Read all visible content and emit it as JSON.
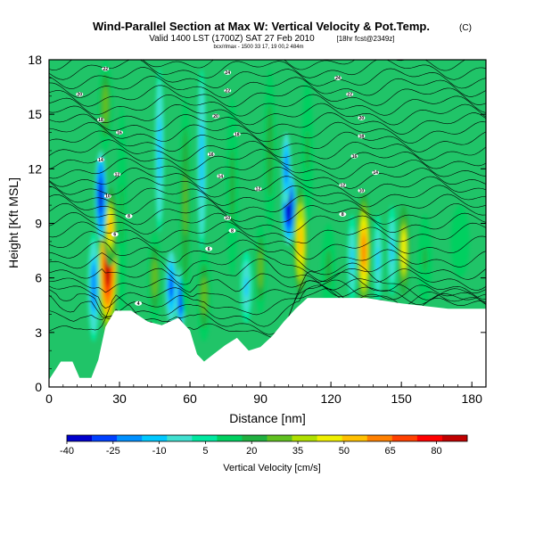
{
  "figure": {
    "title": "Wind-Parallel Section at Max W: Vertical Velocity & Pot.Temp.",
    "title_mark": "(C)",
    "subtitle": "Valid 1400 LST (1700Z) SAT 27 Feb 2010",
    "subtitle_note": "[18hr fcst@2349z]",
    "caption": "bcx/rlmax - 1500 33 17, 19 00,2 484m"
  },
  "chart_data": {
    "type": "heatmap",
    "title": "Wind-Parallel Section at Max W: Vertical Velocity & Pot.Temp.",
    "xlabel": "Distance [nm]",
    "ylabel": "Height [Kft MSL]",
    "xlim": [
      0,
      186
    ],
    "ylim": [
      0,
      18
    ],
    "xticks": [
      0,
      30,
      60,
      90,
      120,
      150,
      180
    ],
    "yticks": [
      0,
      3,
      6,
      9,
      12,
      15,
      18
    ],
    "colorbar": {
      "label": "Vertical Velocity [cm/s]",
      "tick_values": [
        -40,
        -25,
        -10,
        5,
        20,
        35,
        50,
        65,
        80
      ],
      "tick_labels": [
        "-40",
        "-25",
        "-10",
        "5",
        "20",
        "35",
        "50",
        "65",
        "80"
      ],
      "range": [
        -40,
        90
      ],
      "colors": [
        "#0000cc",
        "#0040ff",
        "#0090ff",
        "#00c8ff",
        "#40e0d0",
        "#00e8a0",
        "#00d060",
        "#20b040",
        "#60c020",
        "#b0e000",
        "#f0f000",
        "#ffc000",
        "#ff8000",
        "#ff4000",
        "#ff0000",
        "#c00000"
      ]
    },
    "terrain": [
      [
        0,
        0.4
      ],
      [
        5,
        1.4
      ],
      [
        10,
        1.4
      ],
      [
        13,
        0.5
      ],
      [
        18,
        0.5
      ],
      [
        21,
        1.5
      ],
      [
        24,
        3.3
      ],
      [
        28,
        4.2
      ],
      [
        35,
        4.2
      ],
      [
        42,
        3.6
      ],
      [
        48,
        3.4
      ],
      [
        55,
        3.8
      ],
      [
        60,
        3.1
      ],
      [
        63,
        1.8
      ],
      [
        66,
        1.4
      ],
      [
        70,
        1.8
      ],
      [
        75,
        2.3
      ],
      [
        80,
        2.7
      ],
      [
        85,
        2.0
      ],
      [
        90,
        2.2
      ],
      [
        95,
        2.8
      ],
      [
        100,
        3.6
      ],
      [
        105,
        4.3
      ],
      [
        110,
        4.9
      ],
      [
        135,
        4.9
      ],
      [
        150,
        4.6
      ],
      [
        170,
        4.3
      ],
      [
        186,
        4.3
      ]
    ],
    "vertical_velocity_features": [
      {
        "x": 25,
        "y": 6.5,
        "x_halfwidth": 4,
        "y_halfheight": 3.5,
        "w": 85
      },
      {
        "x": 26,
        "y": 8.8,
        "x_halfwidth": 3,
        "y_halfheight": 2.2,
        "w": 50
      },
      {
        "x": 24,
        "y": 15.5,
        "x_halfwidth": 3,
        "y_halfheight": 2.5,
        "w": 30
      },
      {
        "x": 22,
        "y": 10.5,
        "x_halfwidth": 2.5,
        "y_halfheight": 2.5,
        "w": -35
      },
      {
        "x": 19,
        "y": 5.5,
        "x_halfwidth": 2.5,
        "y_halfheight": 3.0,
        "w": -20
      },
      {
        "x": 31,
        "y": 9.5,
        "x_halfwidth": 2,
        "y_halfheight": 6,
        "w": 18
      },
      {
        "x": 45,
        "y": 6.0,
        "x_halfwidth": 3,
        "y_halfheight": 2.5,
        "w": 30
      },
      {
        "x": 47,
        "y": 13.0,
        "x_halfwidth": 2,
        "y_halfheight": 4.5,
        "w": -12
      },
      {
        "x": 52,
        "y": 5.5,
        "x_halfwidth": 2.5,
        "y_halfheight": 2.0,
        "w": -25
      },
      {
        "x": 56,
        "y": 4.8,
        "x_halfwidth": 2,
        "y_halfheight": 1.8,
        "w": -30
      },
      {
        "x": 58,
        "y": 10.0,
        "x_halfwidth": 2.5,
        "y_halfheight": 6,
        "w": 25
      },
      {
        "x": 66,
        "y": 5.0,
        "x_halfwidth": 3,
        "y_halfheight": 2.5,
        "w": 30
      },
      {
        "x": 65,
        "y": 12.5,
        "x_halfwidth": 2,
        "y_halfheight": 5,
        "w": -12
      },
      {
        "x": 78,
        "y": 11.0,
        "x_halfwidth": 2.5,
        "y_halfheight": 5,
        "w": 20
      },
      {
        "x": 84,
        "y": 5.5,
        "x_halfwidth": 2.5,
        "y_halfheight": 2.0,
        "w": -10
      },
      {
        "x": 90,
        "y": 6.5,
        "x_halfwidth": 2.5,
        "y_halfheight": 2.5,
        "w": 28
      },
      {
        "x": 94,
        "y": 13.0,
        "x_halfwidth": 2.5,
        "y_halfheight": 4.5,
        "w": 22
      },
      {
        "x": 102,
        "y": 10.0,
        "x_halfwidth": 3,
        "y_halfheight": 2.2,
        "w": -40
      },
      {
        "x": 101,
        "y": 12.0,
        "x_halfwidth": 2,
        "y_halfheight": 2.0,
        "w": -22
      },
      {
        "x": 107,
        "y": 8.0,
        "x_halfwidth": 3,
        "y_halfheight": 3,
        "w": 55
      },
      {
        "x": 110,
        "y": 13.0,
        "x_halfwidth": 2.5,
        "y_halfheight": 4,
        "w": 18
      },
      {
        "x": 119,
        "y": 6.5,
        "x_halfwidth": 3,
        "y_halfheight": 2.5,
        "w": 20
      },
      {
        "x": 134,
        "y": 7.5,
        "x_halfwidth": 3,
        "y_halfheight": 3.2,
        "w": 62
      },
      {
        "x": 129,
        "y": 7.0,
        "x_halfwidth": 2,
        "y_halfheight": 2.5,
        "w": -10
      },
      {
        "x": 140,
        "y": 7.0,
        "x_halfwidth": 2,
        "y_halfheight": 2.5,
        "w": -8
      },
      {
        "x": 151,
        "y": 7.5,
        "x_halfwidth": 2.5,
        "y_halfheight": 2.5,
        "w": 48
      },
      {
        "x": 146,
        "y": 7.5,
        "x_halfwidth": 2,
        "y_halfheight": 2.5,
        "w": -10
      },
      {
        "x": 160,
        "y": 7.0,
        "x_halfwidth": 3,
        "y_halfheight": 2.5,
        "w": 18
      },
      {
        "x": 175,
        "y": 8.0,
        "x_halfwidth": 4,
        "y_halfheight": 2.0,
        "w": 15
      }
    ],
    "theta_contours": {
      "labels": [
        {
          "x": 24,
          "y": 17.5,
          "text": "22"
        },
        {
          "x": 13,
          "y": 16.1,
          "text": "20"
        },
        {
          "x": 22,
          "y": 14.7,
          "text": "18"
        },
        {
          "x": 30,
          "y": 14.0,
          "text": "16"
        },
        {
          "x": 22,
          "y": 12.5,
          "text": "14"
        },
        {
          "x": 29,
          "y": 11.7,
          "text": "12"
        },
        {
          "x": 25,
          "y": 10.5,
          "text": "10"
        },
        {
          "x": 34,
          "y": 9.4,
          "text": "8"
        },
        {
          "x": 28,
          "y": 8.4,
          "text": "6"
        },
        {
          "x": 38,
          "y": 4.6,
          "text": "4"
        },
        {
          "x": 76,
          "y": 17.3,
          "text": "24"
        },
        {
          "x": 76,
          "y": 16.3,
          "text": "22"
        },
        {
          "x": 71,
          "y": 14.9,
          "text": "20"
        },
        {
          "x": 80,
          "y": 13.9,
          "text": "18"
        },
        {
          "x": 69,
          "y": 12.8,
          "text": "16"
        },
        {
          "x": 73,
          "y": 11.6,
          "text": "14"
        },
        {
          "x": 89,
          "y": 10.9,
          "text": "12"
        },
        {
          "x": 76,
          "y": 9.3,
          "text": "10"
        },
        {
          "x": 78,
          "y": 8.6,
          "text": "8"
        },
        {
          "x": 68,
          "y": 7.6,
          "text": "6"
        },
        {
          "x": 123,
          "y": 17.0,
          "text": "24"
        },
        {
          "x": 128,
          "y": 16.1,
          "text": "22"
        },
        {
          "x": 133,
          "y": 14.8,
          "text": "20"
        },
        {
          "x": 133,
          "y": 13.8,
          "text": "18"
        },
        {
          "x": 130,
          "y": 12.7,
          "text": "16"
        },
        {
          "x": 139,
          "y": 11.8,
          "text": "14"
        },
        {
          "x": 125,
          "y": 11.1,
          "text": "12"
        },
        {
          "x": 133,
          "y": 10.8,
          "text": "10"
        },
        {
          "x": 125,
          "y": 9.5,
          "text": "8"
        }
      ]
    }
  }
}
